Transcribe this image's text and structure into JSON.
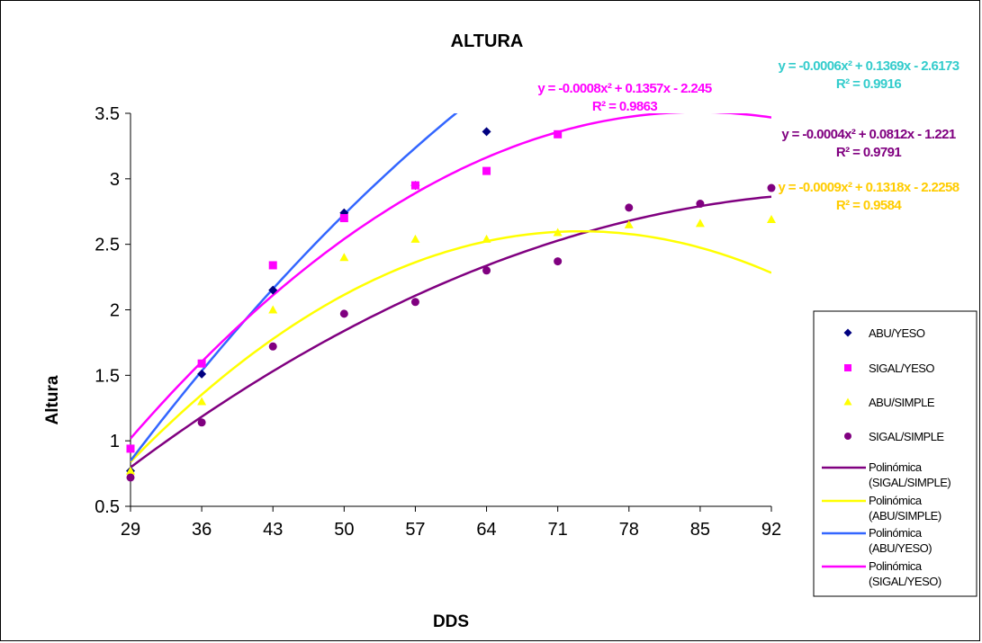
{
  "chart_data": {
    "type": "scatter",
    "title": "ALTURA",
    "xlabel": "DDS",
    "ylabel": "Altura",
    "x_ticks": [
      "29",
      "36",
      "43",
      "50",
      "57",
      "64",
      "71",
      "78",
      "85",
      "92"
    ],
    "y_ticks": [
      "0.5",
      "1",
      "1.5",
      "2",
      "2.5",
      "3",
      "3.5"
    ],
    "xlim": [
      29,
      92
    ],
    "ylim": [
      0.5,
      3.5
    ],
    "grid": false,
    "legend_position": "right",
    "series": [
      {
        "name": "ABU/YESO",
        "marker": "diamond",
        "color": "#000080",
        "points": [
          [
            29,
            0.77
          ],
          [
            36,
            1.51
          ],
          [
            43,
            2.15
          ],
          [
            50,
            2.74
          ],
          [
            57,
            2.95
          ],
          [
            64,
            3.36
          ]
        ]
      },
      {
        "name": "SIGAL/YESO",
        "marker": "square",
        "color": "#FF00FF",
        "points": [
          [
            29,
            0.94
          ],
          [
            36,
            1.59
          ],
          [
            43,
            2.34
          ],
          [
            50,
            2.7
          ],
          [
            57,
            2.95
          ],
          [
            64,
            3.06
          ],
          [
            71,
            3.34
          ]
        ]
      },
      {
        "name": "ABU/SIMPLE",
        "marker": "triangle",
        "color": "#FFFF00",
        "points": [
          [
            29,
            0.77
          ],
          [
            36,
            1.3
          ],
          [
            43,
            2.0
          ],
          [
            50,
            2.4
          ],
          [
            57,
            2.54
          ],
          [
            64,
            2.54
          ],
          [
            71,
            2.59
          ],
          [
            78,
            2.65
          ],
          [
            85,
            2.66
          ],
          [
            92,
            2.69
          ]
        ]
      },
      {
        "name": "SIGAL/SIMPLE",
        "marker": "circle",
        "color": "#800080",
        "points": [
          [
            29,
            0.72
          ],
          [
            36,
            1.14
          ],
          [
            43,
            1.72
          ],
          [
            50,
            1.97
          ],
          [
            57,
            2.06
          ],
          [
            64,
            2.3
          ],
          [
            71,
            2.37
          ],
          [
            78,
            2.78
          ],
          [
            85,
            2.81
          ],
          [
            92,
            2.93
          ]
        ]
      }
    ],
    "trendlines": [
      {
        "name": "Polinómica (SIGAL/SIMPLE)",
        "color": "#800080",
        "coeffs": [
          -0.0004,
          0.0812,
          -1.221
        ],
        "x_range": [
          29,
          92
        ]
      },
      {
        "name": "Polinómica (ABU/SIMPLE)",
        "color": "#FFFF00",
        "coeffs": [
          -0.0009,
          0.1318,
          -2.2258
        ],
        "x_range": [
          29,
          92
        ]
      },
      {
        "name": "Polinómica (ABU/YESO)",
        "color": "#3366FF",
        "coeffs": [
          -0.0006,
          0.1369,
          -2.6173
        ],
        "x_range": [
          29,
          92
        ]
      },
      {
        "name": "Polinómica (SIGAL/YESO)",
        "color": "#FF00FF",
        "coeffs": [
          -0.0008,
          0.1357,
          -2.245
        ],
        "x_range": [
          29,
          92
        ]
      }
    ],
    "annotations": [
      {
        "eq": "y = -0.0006x² + 0.1369x - 2.6173",
        "r2": "R² = 0.9916",
        "color": "#33CCCC"
      },
      {
        "eq": "y = -0.0008x² + 0.1357x - 2.245",
        "r2": "R² = 0.9863",
        "color": "#FF00FF"
      },
      {
        "eq": "y = -0.0004x² + 0.0812x - 1.221",
        "r2": "R² = 0.9791",
        "color": "#800080"
      },
      {
        "eq": "y = -0.0009x² + 0.1318x - 2.2258",
        "r2": "R² = 0.9584",
        "color": "#FFCC00"
      }
    ]
  }
}
